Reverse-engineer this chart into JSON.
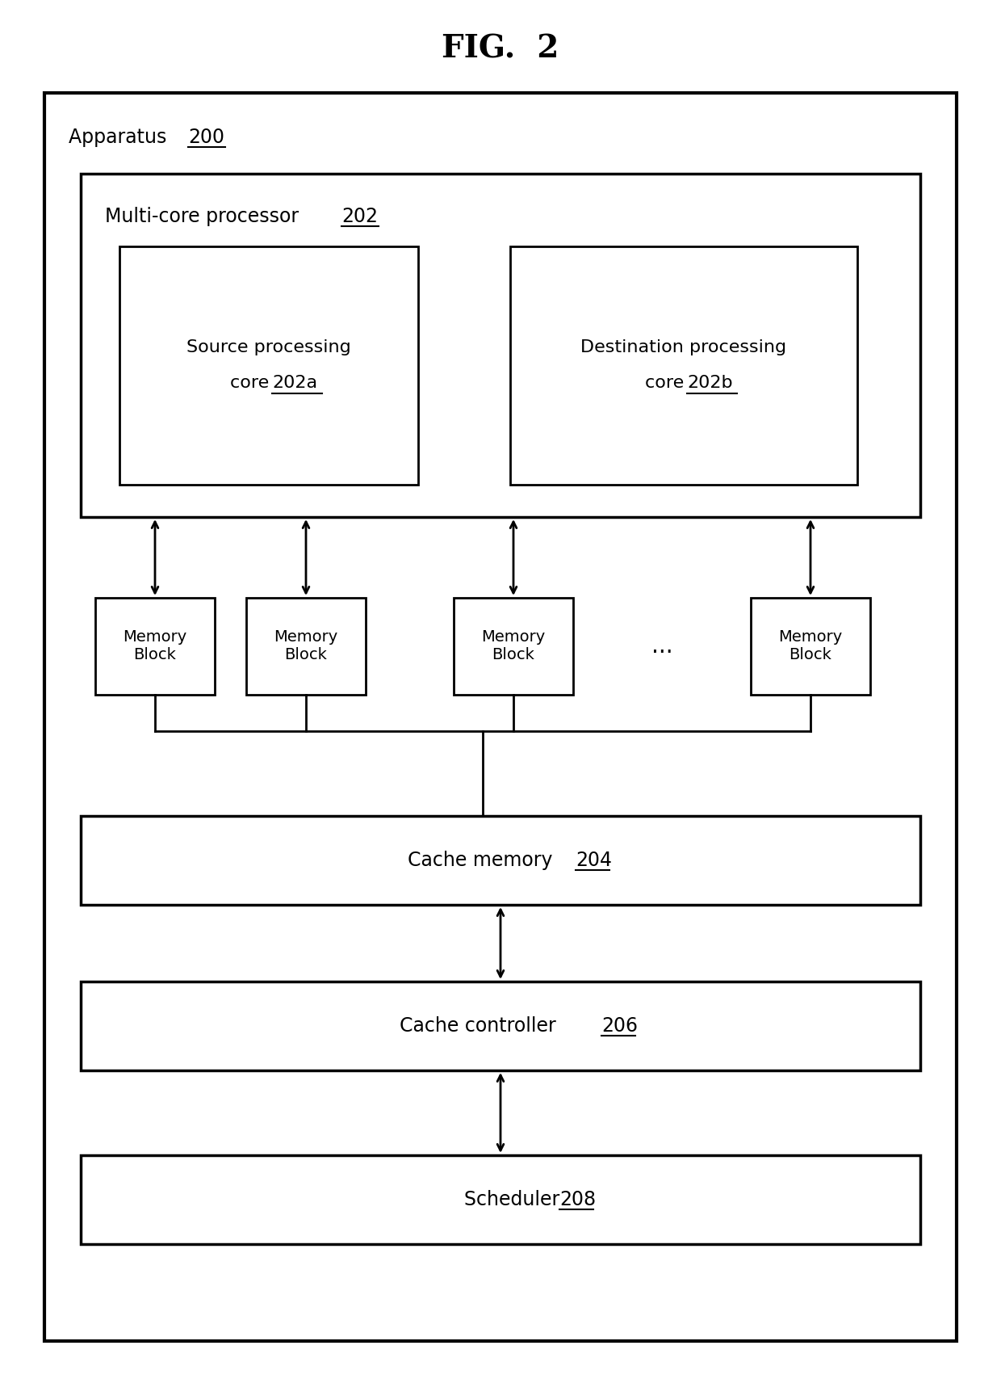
{
  "title": "FIG.  2",
  "title_fontsize": 28,
  "title_fontweight": "bold",
  "title_family": "serif",
  "bg_color": "#ffffff",
  "border_color": "#000000",
  "text_color": "#000000",
  "apparatus_label": "Apparatus ",
  "apparatus_num": "200",
  "processor_label": "Multi-core processor ",
  "processor_num": "202",
  "src_core_line1": "Source processing",
  "src_core_line2": "core ",
  "src_core_num": "202a",
  "dst_core_line1": "Destination processing",
  "dst_core_line2": "core ",
  "dst_core_num": "202b",
  "mem_block_label": "Memory\nBlock",
  "cache_mem_label": "Cache memory ",
  "cache_mem_num": "204",
  "cache_ctrl_label": "Cache controller ",
  "cache_ctrl_num": "206",
  "scheduler_label": "Scheduler ",
  "scheduler_num": "208",
  "dots": "..."
}
